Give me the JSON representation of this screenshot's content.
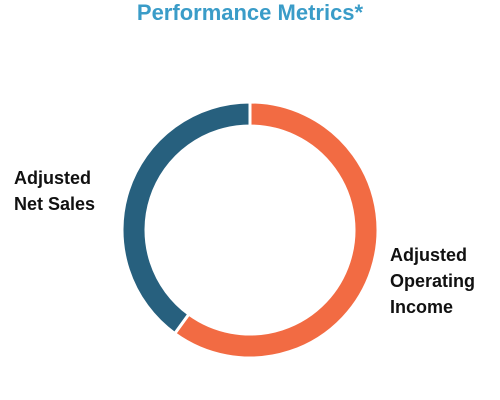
{
  "chart_data": {
    "type": "pie",
    "title": "Performance Metrics*",
    "categories": [
      "Adjusted Operating Income",
      "Adjusted Net Sales"
    ],
    "values": [
      60,
      40
    ],
    "colors": [
      "#f26b43",
      "#27607e"
    ]
  }
}
